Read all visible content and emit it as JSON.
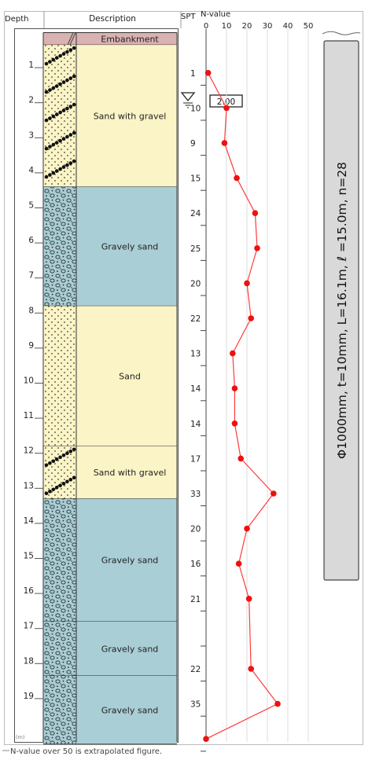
{
  "headers": {
    "depth": "Depth",
    "description": "Description",
    "spt": "SPT",
    "n_value": "N-value"
  },
  "depth_unit": "(m)",
  "water_level": "2.00",
  "footnote": "N-value over 50 is extrapolated figure.",
  "pile_spec": "Φ1000mm, t=10mm, L=16.1m, ℓ =15.0m, n=28",
  "layers": [
    {
      "name": "Embankment",
      "top": 0.0,
      "bottom": 0.35,
      "pattern": "embankment",
      "color": "#dbb2b2"
    },
    {
      "name": "Sand with gravel",
      "top": 0.35,
      "bottom": 4.4,
      "pattern": "sand-gravel",
      "color": "#fbf4c6"
    },
    {
      "name": "Gravely sand",
      "top": 4.4,
      "bottom": 7.8,
      "pattern": "gravel",
      "color": "#a9ced6"
    },
    {
      "name": "Sand",
      "top": 7.8,
      "bottom": 11.8,
      "pattern": "sand",
      "color": "#fbf4c6"
    },
    {
      "name": "Sand with gravel",
      "top": 11.8,
      "bottom": 13.3,
      "pattern": "sand-gravel",
      "color": "#fbf4c6"
    },
    {
      "name": "Gravely sand",
      "top": 13.3,
      "bottom": 16.8,
      "pattern": "gravel",
      "color": "#a9ced6"
    },
    {
      "name": "Gravely sand",
      "top": 16.8,
      "bottom": 18.35,
      "pattern": "gravel",
      "color": "#a9ced6"
    },
    {
      "name": "Gravely sand",
      "top": 18.35,
      "bottom": 20.3,
      "pattern": "gravel",
      "color": "#a9ced6"
    }
  ],
  "chart_data": {
    "type": "line",
    "title": "",
    "xlabel": "N-value",
    "ylabel": "Depth (m)",
    "xlim": [
      0,
      50
    ],
    "x_ticks": [
      0,
      10,
      20,
      30,
      40,
      50
    ],
    "ylim": [
      0,
      20.3
    ],
    "depth_ticks": [
      1,
      2,
      3,
      4,
      5,
      6,
      7,
      8,
      9,
      10,
      11,
      12,
      13,
      14,
      15,
      16,
      17,
      18,
      19
    ],
    "series": [
      {
        "depth": [
          1.15,
          2.15,
          3.15,
          4.15,
          5.15,
          6.15,
          7.15,
          8.15,
          9.15,
          10.15,
          11.15,
          12.15,
          13.15,
          14.15,
          15.15,
          16.15,
          18.15,
          19.15,
          20.15
        ],
        "n": [
          1,
          10,
          9,
          15,
          24,
          25,
          20,
          22,
          13,
          14,
          14,
          17,
          33,
          20,
          16,
          21,
          22,
          35,
          0
        ],
        "n_labels": [
          "1",
          "10",
          "9",
          "15",
          "24",
          "25",
          "20",
          "22",
          "13",
          "14",
          "14",
          "17",
          "33",
          "20",
          "16",
          "21",
          "22",
          "35",
          ""
        ]
      }
    ],
    "colors": {
      "line": "#ff3b3b",
      "marker": "#ee1111"
    }
  }
}
